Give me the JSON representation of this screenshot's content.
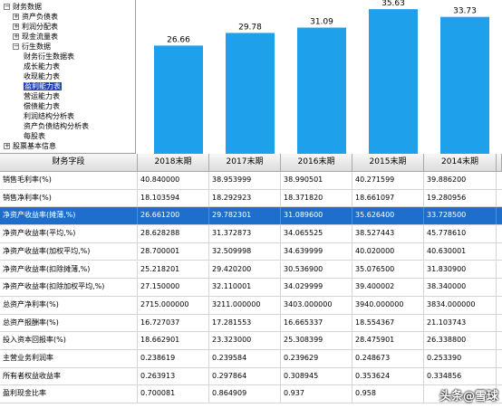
{
  "tree": {
    "items": [
      {
        "label": "财务数据",
        "toggle": "⊟",
        "level": 0
      },
      {
        "label": "资产负债表",
        "toggle": "⊞",
        "level": 1
      },
      {
        "label": "利润分配表",
        "toggle": "⊞",
        "level": 1
      },
      {
        "label": "现金流量表",
        "toggle": "⊞",
        "level": 1
      },
      {
        "label": "衍生数据",
        "toggle": "⊟",
        "level": 1
      },
      {
        "label": "财务衍生数据表",
        "toggle": "",
        "level": 2
      },
      {
        "label": "成长能力表",
        "toggle": "",
        "level": 2
      },
      {
        "label": "收现能力表",
        "toggle": "",
        "level": 2
      },
      {
        "label": "盈利能力表",
        "toggle": "",
        "level": 2,
        "selected": true
      },
      {
        "label": "营运能力表",
        "toggle": "",
        "level": 2
      },
      {
        "label": "偿债能力表",
        "toggle": "",
        "level": 2
      },
      {
        "label": "利润结构分析表",
        "toggle": "",
        "level": 2
      },
      {
        "label": "资产负债结构分析表",
        "toggle": "",
        "level": 2
      },
      {
        "label": "每股表",
        "toggle": "",
        "level": 2
      },
      {
        "label": "股票基本信息",
        "toggle": "⊞",
        "level": 0
      }
    ]
  },
  "chart_data": {
    "type": "bar",
    "categories": [
      "2018末期",
      "2017末期",
      "2016末期",
      "2015末期",
      "2014末期"
    ],
    "values": [
      26.66,
      29.78,
      31.09,
      35.63,
      33.73
    ],
    "value_labels": [
      "26.66",
      "29.78",
      "31.09",
      "35.63",
      "33.73"
    ],
    "title": "",
    "xlabel": "",
    "ylabel": "",
    "ylim": [
      0,
      37
    ],
    "bar_color": "#1fa0ea",
    "grid": false
  },
  "table": {
    "columns": [
      "财务字段",
      "2018末期",
      "2017末期",
      "2016末期",
      "2015末期",
      "2014末期"
    ],
    "rows": [
      {
        "cells": [
          "销售毛利率(%)",
          "40.840000",
          "38.953999",
          "38.990501",
          "40.271599",
          "39.886200"
        ]
      },
      {
        "cells": [
          "销售净利率(%)",
          "18.103594",
          "18.292923",
          "18.371820",
          "18.661097",
          "19.280956"
        ]
      },
      {
        "cells": [
          "净资产收益率(摊薄,%)",
          "26.661200",
          "29.782301",
          "31.089600",
          "35.626400",
          "33.728500"
        ],
        "selected": true
      },
      {
        "cells": [
          "净资产收益率(平均,%)",
          "28.628288",
          "31.372873",
          "34.065525",
          "38.527443",
          "45.778610"
        ]
      },
      {
        "cells": [
          "净资产收益率(加权平均,%)",
          "28.700001",
          "32.509998",
          "34.639999",
          "40.020000",
          "40.630001"
        ]
      },
      {
        "cells": [
          "净资产收益率(扣除摊薄,%)",
          "25.218201",
          "29.420200",
          "30.536900",
          "35.076500",
          "31.830900"
        ]
      },
      {
        "cells": [
          "净资产收益率(扣除加权平均,%)",
          "27.150000",
          "32.110001",
          "34.029999",
          "39.400002",
          "38.340000"
        ]
      },
      {
        "cells": [
          "总资产净利率(%)",
          "2715.000000",
          "3211.000000",
          "3403.000000",
          "3940.000000",
          "3834.000000"
        ]
      },
      {
        "cells": [
          "总资产报酬率(%)",
          "16.727037",
          "17.281553",
          "16.665337",
          "18.554367",
          "21.103743"
        ]
      },
      {
        "cells": [
          "投入资本回报率(%)",
          "18.662901",
          "23.323000",
          "25.308399",
          "28.475901",
          "26.338800"
        ]
      },
      {
        "cells": [
          "主营业务利润率",
          "0.238619",
          "0.239584",
          "0.239629",
          "0.248673",
          "0.253390"
        ]
      },
      {
        "cells": [
          "所有者权益收益率",
          "0.263913",
          "0.297864",
          "0.308945",
          "0.353624",
          "0.334856"
        ]
      },
      {
        "cells": [
          "盈利现金比率",
          "0.700081",
          "0.864909",
          "0.937",
          "0.958",
          ""
        ]
      }
    ]
  },
  "watermark": "头条@雪球"
}
